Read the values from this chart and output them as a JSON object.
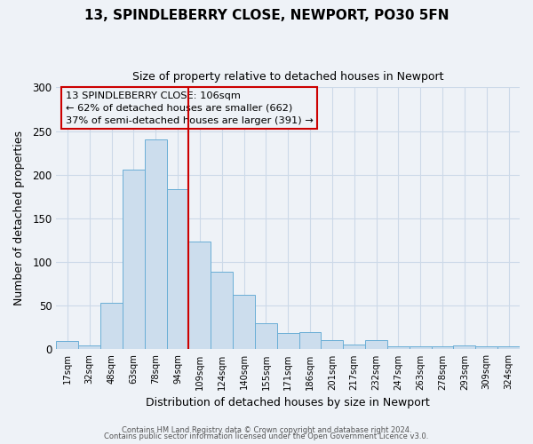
{
  "title": "13, SPINDLEBERRY CLOSE, NEWPORT, PO30 5FN",
  "subtitle": "Size of property relative to detached houses in Newport",
  "xlabel": "Distribution of detached houses by size in Newport",
  "ylabel": "Number of detached properties",
  "bar_labels": [
    "17sqm",
    "32sqm",
    "48sqm",
    "63sqm",
    "78sqm",
    "94sqm",
    "109sqm",
    "124sqm",
    "140sqm",
    "155sqm",
    "171sqm",
    "186sqm",
    "201sqm",
    "217sqm",
    "232sqm",
    "247sqm",
    "263sqm",
    "278sqm",
    "293sqm",
    "309sqm",
    "324sqm"
  ],
  "bar_values": [
    10,
    5,
    53,
    206,
    240,
    183,
    123,
    89,
    62,
    30,
    19,
    20,
    11,
    6,
    11,
    3,
    3,
    3,
    5,
    3,
    3
  ],
  "bar_color": "#ccdded",
  "bar_edge_color": "#6aaed6",
  "grid_color": "#ccd9e8",
  "vline_x_index": 5,
  "vline_color": "#cc0000",
  "ylim": [
    0,
    300
  ],
  "yticks": [
    0,
    50,
    100,
    150,
    200,
    250,
    300
  ],
  "annotation_box_text": "13 SPINDLEBERRY CLOSE: 106sqm\n← 62% of detached houses are smaller (662)\n37% of semi-detached houses are larger (391) →",
  "annotation_box_color": "#cc0000",
  "footer_line1": "Contains HM Land Registry data © Crown copyright and database right 2024.",
  "footer_line2": "Contains public sector information licensed under the Open Government Licence v3.0.",
  "background_color": "#eef2f7",
  "title_fontsize": 11,
  "subtitle_fontsize": 9
}
